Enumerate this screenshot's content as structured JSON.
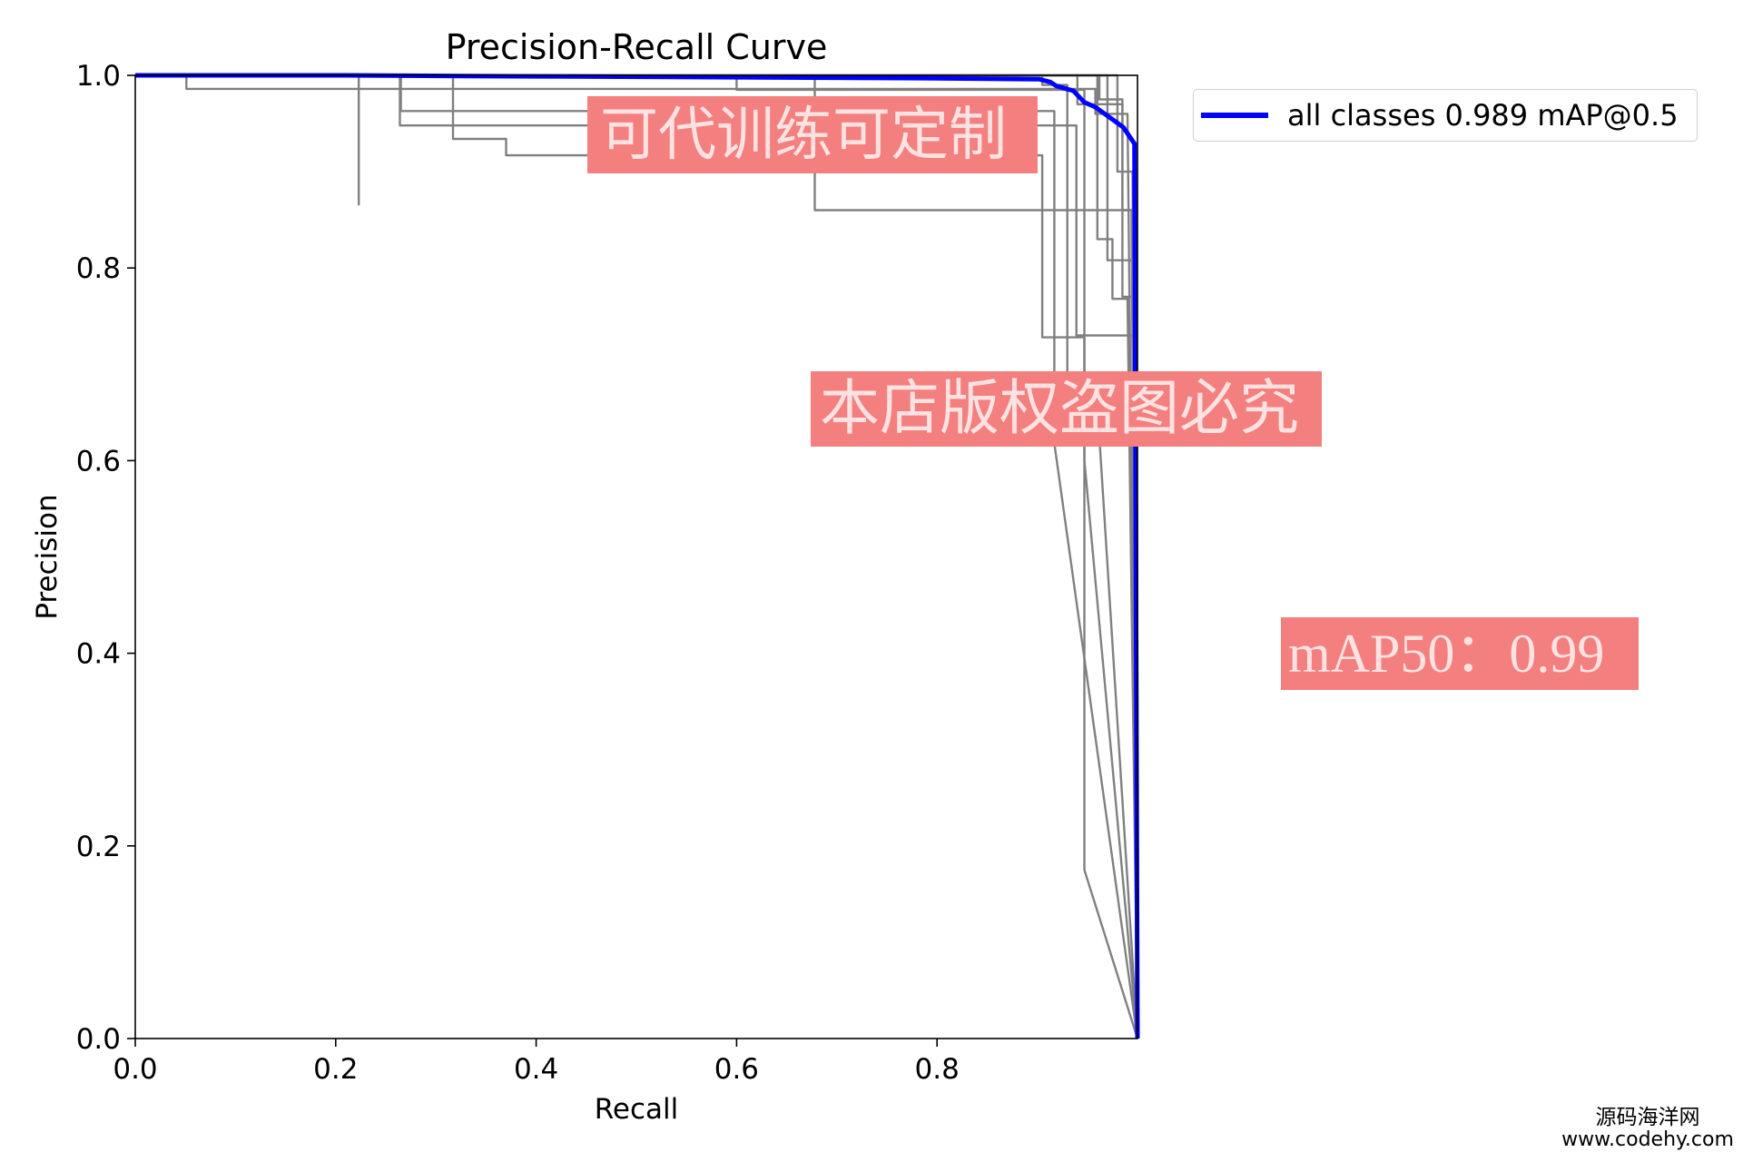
{
  "chart_data": {
    "type": "line",
    "title": "Precision-Recall Curve",
    "xlabel": "Recall",
    "ylabel": "Precision",
    "xlim": [
      0,
      1
    ],
    "ylim": [
      0,
      1
    ],
    "x_ticks": [
      "0.0",
      "0.2",
      "0.4",
      "0.6",
      "0.8"
    ],
    "y_ticks": [
      "0.0",
      "0.2",
      "0.4",
      "0.6",
      "0.8",
      "1.0"
    ],
    "grid": false,
    "legend_placement": "outside upper right",
    "series": [
      {
        "name": "all classes 0.989 mAP@0.5",
        "color": "#0000ff",
        "x": [
          0,
          0.2,
          0.4,
          0.6,
          0.8,
          0.902,
          0.913,
          0.919,
          0.936,
          0.947,
          0.958,
          0.974,
          0.986,
          0.997,
          1.0
        ],
        "y": [
          1.0,
          1.0,
          0.999,
          0.998,
          0.997,
          0.996,
          0.993,
          0.989,
          0.984,
          0.972,
          0.967,
          0.955,
          0.946,
          0.929,
          0.0
        ]
      },
      {
        "color": "#808080",
        "x": [
          0,
          0.051,
          0.051,
          0.958,
          0.958,
          0.99,
          1.0
        ],
        "y": [
          1,
          1,
          0.986,
          0.986,
          0.96,
          0.96,
          0
        ]
      },
      {
        "color": "#808080",
        "x": [
          0,
          0.223,
          0.223,
          0.223,
          0.962,
          0.962,
          0.985,
          0.985,
          0.997,
          1.0
        ],
        "y": [
          1,
          1,
          0.866,
          1,
          1,
          0.975,
          0.975,
          0.77,
          0.77,
          0
        ]
      },
      {
        "color": "#808080",
        "x": [
          0,
          0.264,
          0.264,
          0.939,
          0.939,
          0.995,
          1.0
        ],
        "y": [
          1,
          1,
          0.948,
          0.948,
          0.73,
          0.73,
          0
        ]
      },
      {
        "color": "#808080",
        "x": [
          0,
          0.317,
          0.317,
          0.37,
          0.37,
          0.905,
          0.905,
          0.947,
          0.947,
          1.0
        ],
        "y": [
          1,
          1,
          0.934,
          0.934,
          0.917,
          0.917,
          0.728,
          0.728,
          0.175,
          0
        ]
      },
      {
        "color": "#808080",
        "x": [
          0,
          0.265,
          0.265,
          0.917,
          0.917,
          1.0
        ],
        "y": [
          1,
          1,
          0.963,
          0.963,
          0.618,
          0
        ]
      },
      {
        "color": "#808080",
        "x": [
          0,
          0.678,
          0.678,
          0.994,
          1.0
        ],
        "y": [
          1,
          1,
          0.86,
          0.86,
          0
        ]
      },
      {
        "color": "#808080",
        "x": [
          0,
          0.905,
          0.905,
          0.93,
          0.93,
          0.958,
          1.0
        ],
        "y": [
          1,
          1,
          0.99,
          0.99,
          0.69,
          0.69,
          0
        ]
      },
      {
        "color": "#808080",
        "x": [
          0,
          0.96,
          0.96,
          0.975,
          0.975,
          0.99,
          1.0
        ],
        "y": [
          1,
          1,
          0.83,
          0.83,
          0.768,
          0.768,
          0
        ]
      },
      {
        "color": "#808080",
        "x": [
          0,
          0.97,
          0.97,
          0.995,
          1.0
        ],
        "y": [
          1,
          1,
          0.808,
          0.808,
          0
        ]
      },
      {
        "color": "#808080",
        "x": [
          0,
          0.94,
          0.94,
          0.985,
          0.985,
          0.998,
          1.0
        ],
        "y": [
          1,
          1,
          0.97,
          0.97,
          0.86,
          0.86,
          0
        ]
      },
      {
        "color": "#808080",
        "x": [
          0,
          0.6,
          0.6,
          0.947,
          0.947,
          1.0
        ],
        "y": [
          1,
          1,
          0.985,
          0.985,
          0.6,
          0
        ]
      },
      {
        "color": "#808080",
        "x": [
          0,
          0.98,
          0.98,
          0.995,
          1.0
        ],
        "y": [
          1,
          1,
          0.9,
          0.9,
          0
        ]
      }
    ]
  },
  "watermarks": {
    "training_note": "可代训练可定制",
    "copyright_note": "本店版权盗图必究",
    "map50_note": "mAP50：0.99",
    "box_color": "#f37f7f"
  },
  "site": {
    "name": "源码海洋网",
    "url": "www.codehy.com"
  }
}
